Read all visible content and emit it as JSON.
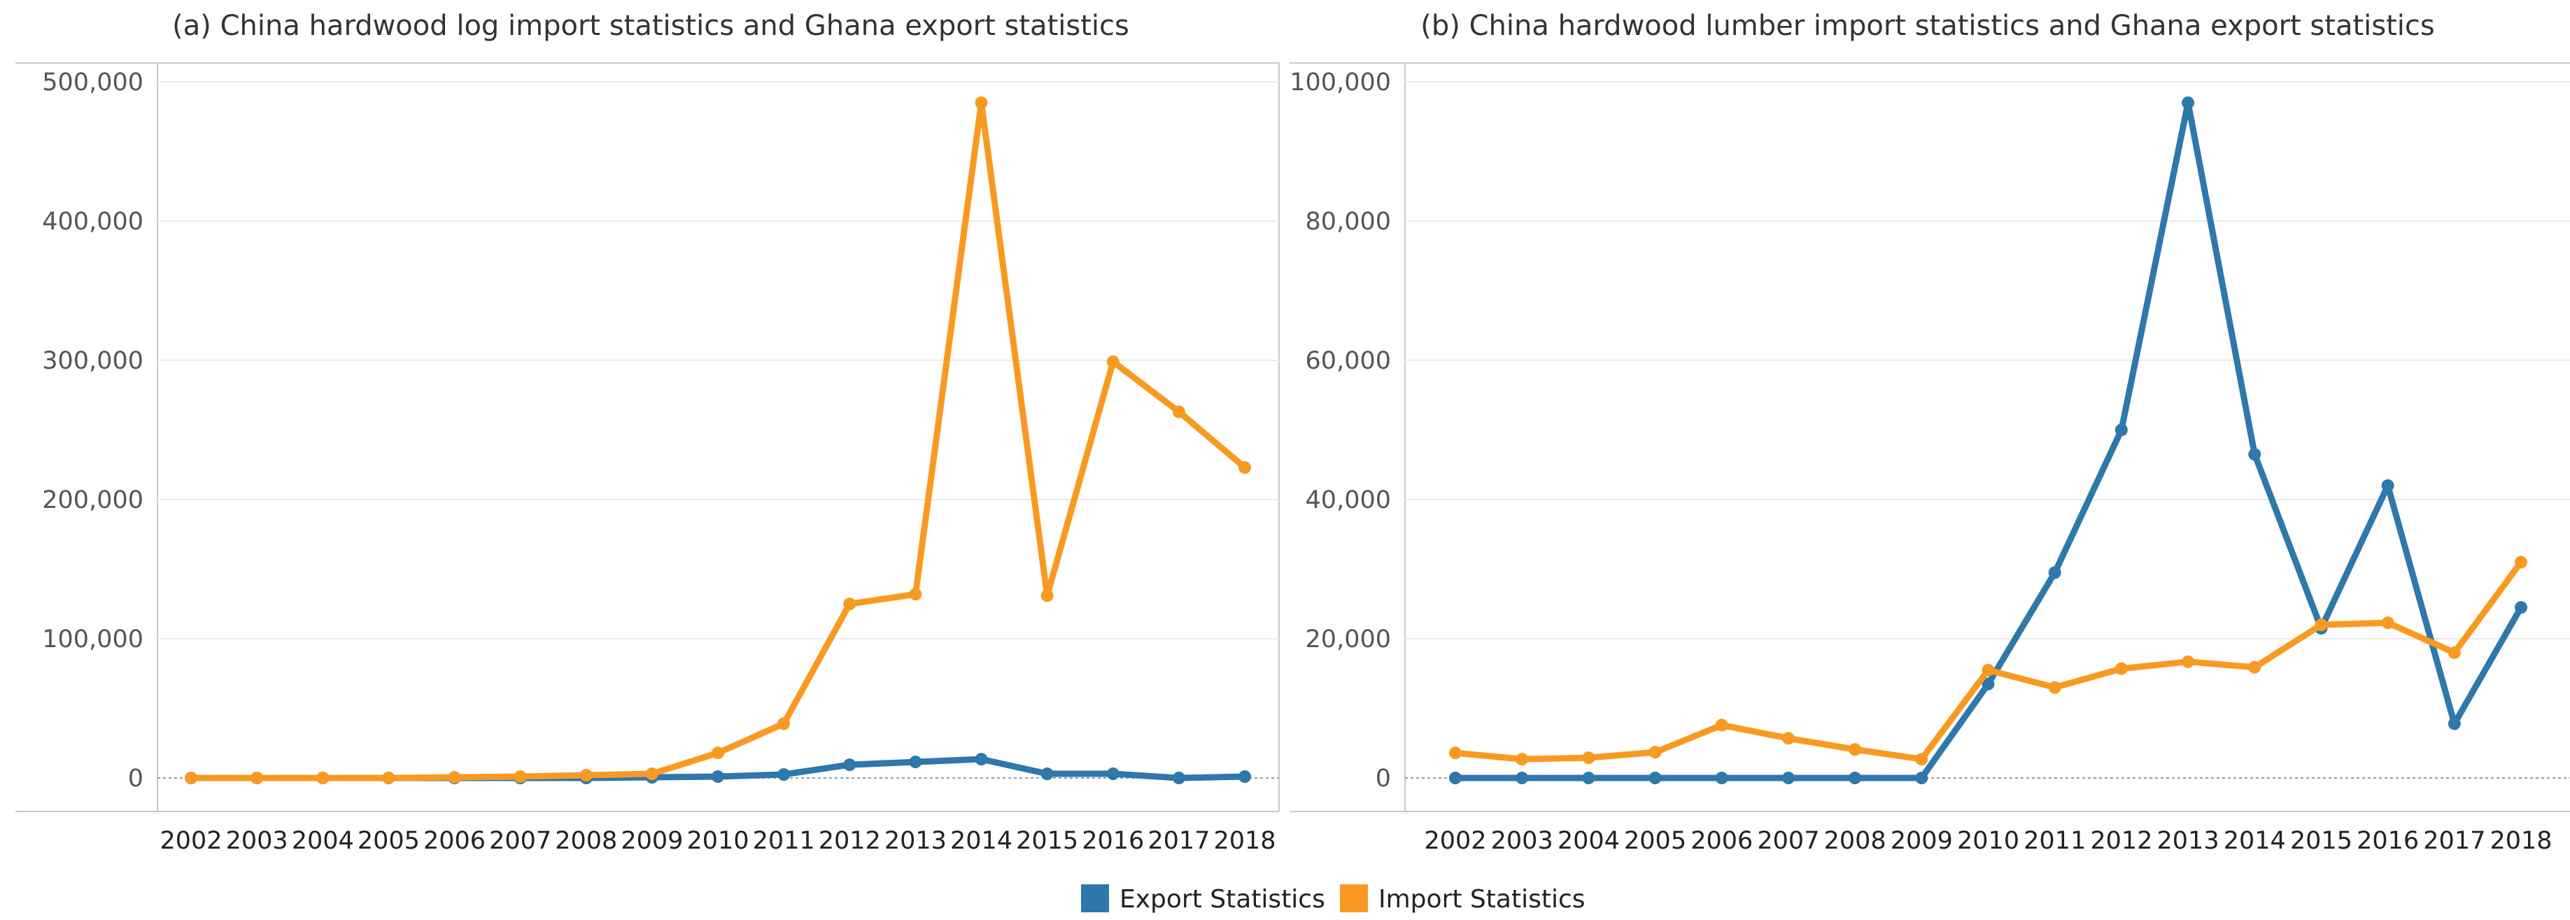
{
  "legend": [
    {
      "name": "Export Statistics",
      "color": "#2E78AB"
    },
    {
      "name": "Import Statistics",
      "color": "#F89A22"
    }
  ],
  "chart_data": [
    {
      "type": "line",
      "title": "(a) China hardwood log import statistics and Ghana export statistics",
      "xlabel": "",
      "ylabel": "",
      "ylim": [
        0,
        500000
      ],
      "yticks": [
        0,
        100000,
        200000,
        300000,
        400000,
        500000
      ],
      "ytick_labels": [
        "0",
        "100,000",
        "200,000",
        "300,000",
        "400,000",
        "500,000"
      ],
      "categories": [
        "2002",
        "2003",
        "2004",
        "2005",
        "2006",
        "2007",
        "2008",
        "2009",
        "2010",
        "2011",
        "2012",
        "2013",
        "2014",
        "2015",
        "2016",
        "2017",
        "2018"
      ],
      "series": [
        {
          "name": "Export Statistics",
          "color": "#2E78AB",
          "values": [
            0,
            0,
            0,
            0,
            0,
            0,
            0,
            500,
            1000,
            2500,
            9500,
            11500,
            13500,
            3000,
            3000,
            0,
            1000
          ]
        },
        {
          "name": "Import Statistics",
          "color": "#F89A22",
          "values": [
            0,
            0,
            0,
            0,
            500,
            1000,
            2000,
            3000,
            18000,
            39000,
            125000,
            132000,
            485000,
            131000,
            299000,
            263000,
            223000
          ]
        }
      ]
    },
    {
      "type": "line",
      "title": "(b) China hardwood lumber import statistics and Ghana export statistics",
      "xlabel": "",
      "ylabel": "",
      "ylim": [
        0,
        100000
      ],
      "yticks": [
        0,
        20000,
        40000,
        60000,
        80000,
        100000
      ],
      "ytick_labels": [
        "0",
        "20,000",
        "40,000",
        "60,000",
        "80,000",
        "100,000"
      ],
      "categories": [
        "2002",
        "2003",
        "2004",
        "2005",
        "2006",
        "2007",
        "2008",
        "2009",
        "2010",
        "2011",
        "2012",
        "2013",
        "2014",
        "2015",
        "2016",
        "2017",
        "2018"
      ],
      "series": [
        {
          "name": "Export Statistics",
          "color": "#2E78AB",
          "values": [
            0,
            0,
            0,
            0,
            0,
            0,
            0,
            0,
            13500,
            29500,
            50000,
            97000,
            46500,
            21500,
            42000,
            7800,
            24500
          ]
        },
        {
          "name": "Import Statistics",
          "color": "#F89A22",
          "values": [
            3600,
            2700,
            2900,
            3700,
            7600,
            5700,
            4100,
            2700,
            15500,
            13000,
            15700,
            16700,
            15900,
            22000,
            22300,
            18000,
            31000
          ]
        }
      ]
    }
  ]
}
